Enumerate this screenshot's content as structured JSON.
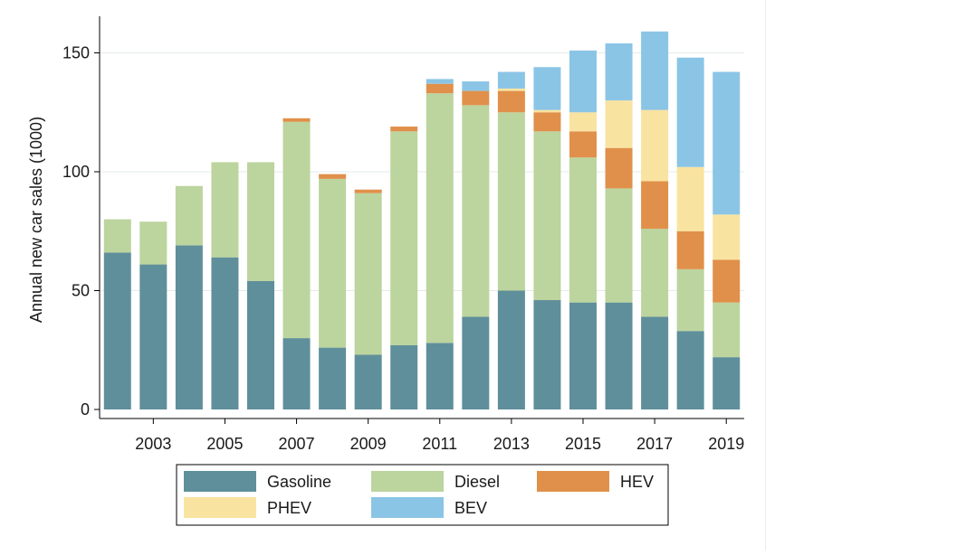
{
  "chart_data": {
    "type": "bar",
    "stacked": true,
    "title": "",
    "xlabel": "",
    "ylabel": "Annual new car sales (1000)",
    "ylim": [
      0,
      165
    ],
    "yticks": [
      0,
      50,
      100,
      150
    ],
    "grid": true,
    "legend_position": "bottom",
    "categories": [
      "2002",
      "2003",
      "2004",
      "2005",
      "2006",
      "2007",
      "2008",
      "2009",
      "2010",
      "2011",
      "2012",
      "2013",
      "2014",
      "2015",
      "2016",
      "2017",
      "2018",
      "2019"
    ],
    "xtick_labels": [
      "2003",
      "2005",
      "2007",
      "2009",
      "2011",
      "2013",
      "2015",
      "2017",
      "2019"
    ],
    "series": [
      {
        "name": "Gasoline",
        "color": "#5f8f9a",
        "values": [
          66,
          61,
          69,
          64,
          54,
          30,
          26,
          23,
          27,
          28,
          39,
          50,
          46,
          45,
          45,
          39,
          33,
          22
        ]
      },
      {
        "name": "Diesel",
        "color": "#bcd49e",
        "values": [
          14,
          18,
          25,
          40,
          50,
          91,
          71,
          68,
          90,
          105,
          89,
          75,
          71,
          61,
          48,
          37,
          26,
          23
        ]
      },
      {
        "name": "HEV",
        "color": "#e0904a",
        "values": [
          0,
          0,
          0,
          0,
          0,
          1.5,
          2,
          1.5,
          2,
          4,
          6,
          9,
          8,
          11,
          17,
          20,
          16,
          18
        ]
      },
      {
        "name": "PHEV",
        "color": "#f9e3a0",
        "values": [
          0,
          0,
          0,
          0,
          0,
          0,
          0,
          0,
          0,
          0,
          0,
          1,
          1,
          8,
          20,
          30,
          27,
          19
        ]
      },
      {
        "name": "BEV",
        "color": "#8bc5e6",
        "values": [
          0,
          0,
          0,
          0,
          0,
          0,
          0,
          0,
          0,
          2,
          4,
          7,
          18,
          26,
          24,
          33,
          46,
          60
        ]
      }
    ]
  }
}
